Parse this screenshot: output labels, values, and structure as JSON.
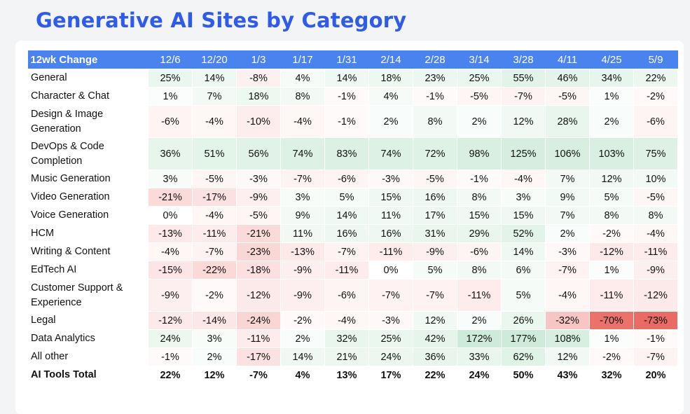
{
  "title": "Generative AI Sites by Category",
  "chart_data": {
    "type": "table",
    "corner_label": "12wk Change",
    "columns": [
      "12/6",
      "12/20",
      "1/3",
      "1/17",
      "1/31",
      "2/14",
      "2/28",
      "3/14",
      "3/28",
      "4/11",
      "4/25",
      "5/9"
    ],
    "rows": [
      {
        "label": "General",
        "values": [
          25,
          14,
          -8,
          4,
          14,
          18,
          23,
          25,
          55,
          46,
          34,
          22
        ]
      },
      {
        "label": "Character & Chat",
        "values": [
          1,
          7,
          18,
          8,
          -1,
          4,
          -1,
          -5,
          -7,
          -5,
          1,
          -2
        ]
      },
      {
        "label": "Design & Image\nGeneration",
        "values": [
          -6,
          -4,
          -10,
          -4,
          -1,
          2,
          8,
          2,
          12,
          28,
          2,
          -6
        ]
      },
      {
        "label": "DevOps & Code\nCompletion",
        "values": [
          36,
          51,
          56,
          74,
          83,
          74,
          72,
          98,
          125,
          106,
          103,
          75
        ]
      },
      {
        "label": "Music Generation",
        "values": [
          3,
          -5,
          -3,
          -7,
          -6,
          -3,
          -5,
          -1,
          -4,
          7,
          12,
          10
        ]
      },
      {
        "label": "Video Generation",
        "values": [
          -21,
          -17,
          -9,
          3,
          5,
          15,
          16,
          8,
          3,
          9,
          5,
          -5
        ]
      },
      {
        "label": "Voice Generation",
        "values": [
          0,
          -4,
          -5,
          9,
          14,
          11,
          17,
          15,
          15,
          7,
          8,
          8
        ]
      },
      {
        "label": "HCM",
        "values": [
          -13,
          -11,
          -21,
          11,
          16,
          16,
          31,
          29,
          52,
          2,
          -2,
          -4
        ]
      },
      {
        "label": "Writing & Content",
        "values": [
          -4,
          -7,
          -23,
          -13,
          -7,
          -11,
          -9,
          -6,
          14,
          -3,
          -12,
          -11
        ]
      },
      {
        "label": "EdTech AI",
        "values": [
          -15,
          -22,
          -18,
          -9,
          -11,
          0,
          5,
          8,
          6,
          -7,
          1,
          -9
        ]
      },
      {
        "label": "Customer Support &\nExperience",
        "values": [
          -9,
          -2,
          -12,
          -9,
          -6,
          -7,
          -7,
          -11,
          5,
          -4,
          -11,
          -12
        ]
      },
      {
        "label": "Legal",
        "values": [
          -12,
          -14,
          -24,
          -2,
          -4,
          -3,
          12,
          2,
          26,
          -32,
          -70,
          -73
        ]
      },
      {
        "label": "Data Analytics",
        "values": [
          24,
          3,
          -11,
          2,
          32,
          25,
          42,
          172,
          177,
          108,
          1,
          -1
        ]
      },
      {
        "label": "All other",
        "values": [
          -1,
          2,
          -17,
          14,
          21,
          24,
          36,
          33,
          62,
          12,
          -2,
          -7
        ]
      },
      {
        "label": "AI Tools Total",
        "values": [
          22,
          12,
          -7,
          4,
          13,
          17,
          22,
          24,
          50,
          43,
          32,
          20
        ],
        "bold": true
      }
    ],
    "value_suffix": "%",
    "colors": {
      "header_bg": "#4a82ee",
      "positive": "#e3f4e9",
      "negative": "#e8665f",
      "title": "#2f5bea"
    }
  }
}
